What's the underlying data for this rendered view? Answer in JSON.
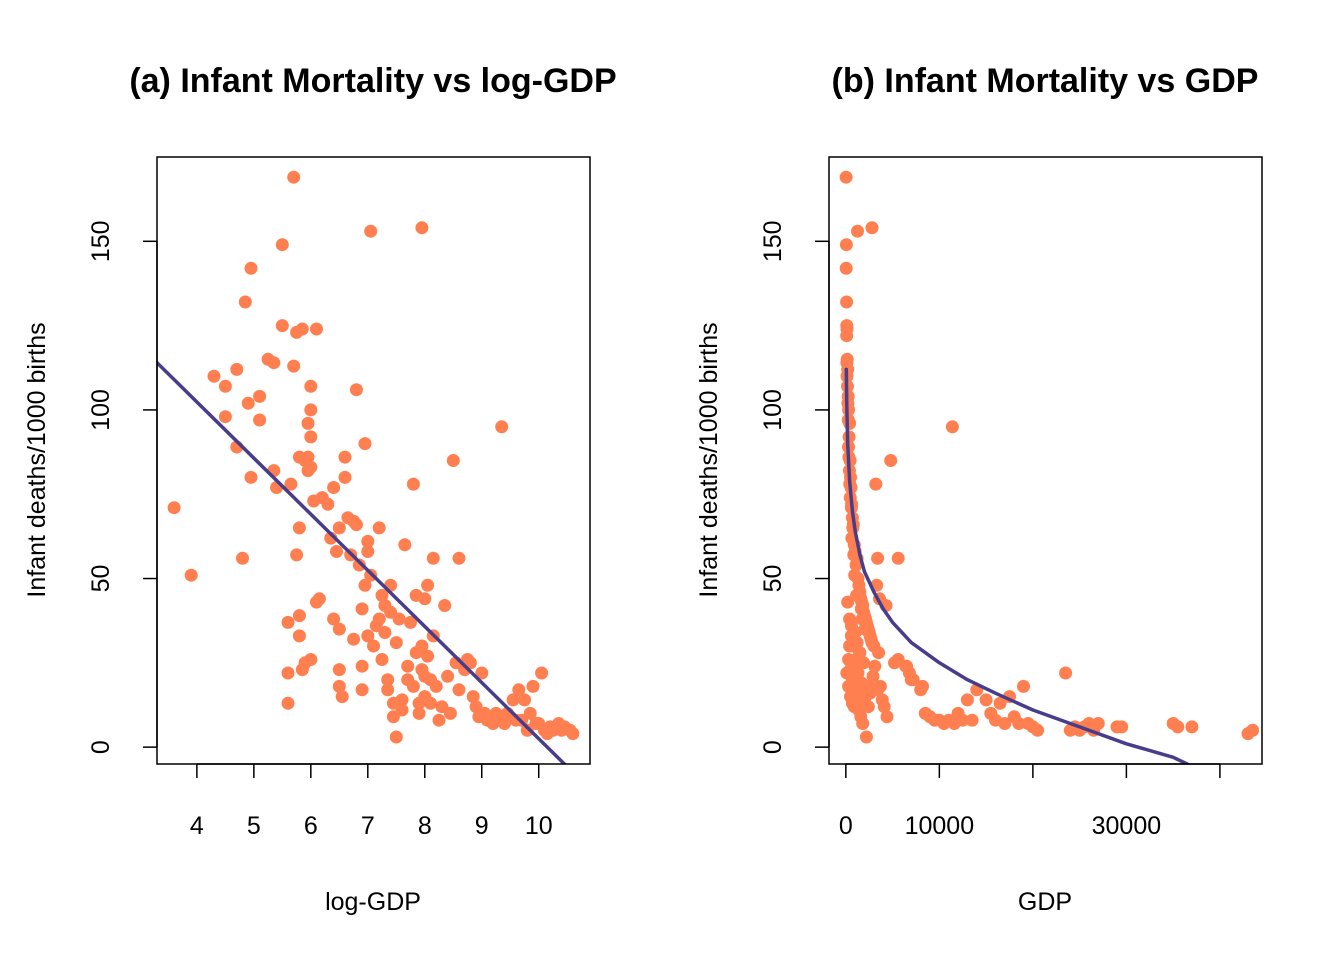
{
  "colors": {
    "point": "#FF7F50",
    "line": "#483D8B",
    "axis": "#000000",
    "background": "#FFFFFF"
  },
  "chart_data": [
    {
      "type": "scatter",
      "title": "(a) Infant Mortality vs log-GDP",
      "xlabel": "log-GDP",
      "ylabel": "Infant deaths/1000 births",
      "xlim": [
        3.3,
        10.9
      ],
      "ylim": [
        -5,
        175
      ],
      "xticks": [
        4,
        5,
        6,
        7,
        8,
        9,
        10
      ],
      "yticks": [
        0,
        50,
        100,
        150
      ],
      "grid": false,
      "points": [
        [
          3.6,
          71
        ],
        [
          3.9,
          51
        ],
        [
          4.3,
          110
        ],
        [
          4.5,
          107
        ],
        [
          4.5,
          98
        ],
        [
          4.7,
          89
        ],
        [
          4.7,
          112
        ],
        [
          4.8,
          56
        ],
        [
          4.85,
          132
        ],
        [
          4.9,
          102
        ],
        [
          4.95,
          142
        ],
        [
          4.95,
          80
        ],
        [
          5.1,
          104
        ],
        [
          5.1,
          97
        ],
        [
          5.25,
          115
        ],
        [
          5.35,
          114
        ],
        [
          5.35,
          82
        ],
        [
          5.4,
          77
        ],
        [
          5.5,
          149
        ],
        [
          5.5,
          125
        ],
        [
          5.6,
          37
        ],
        [
          5.6,
          22
        ],
        [
          5.6,
          13
        ],
        [
          5.65,
          78
        ],
        [
          5.7,
          169
        ],
        [
          5.7,
          113
        ],
        [
          5.75,
          123
        ],
        [
          5.75,
          57
        ],
        [
          5.8,
          86
        ],
        [
          5.8,
          65
        ],
        [
          5.8,
          39
        ],
        [
          5.8,
          33
        ],
        [
          5.85,
          124
        ],
        [
          5.85,
          23
        ],
        [
          5.9,
          85
        ],
        [
          5.9,
          25
        ],
        [
          5.95,
          96
        ],
        [
          5.95,
          82
        ],
        [
          5.95,
          86
        ],
        [
          6.0,
          107
        ],
        [
          6.0,
          100
        ],
        [
          6.0,
          92
        ],
        [
          6.0,
          83
        ],
        [
          6.0,
          26
        ],
        [
          6.05,
          73
        ],
        [
          6.1,
          124
        ],
        [
          6.1,
          43
        ],
        [
          6.15,
          44
        ],
        [
          6.2,
          74
        ],
        [
          6.3,
          72
        ],
        [
          6.35,
          62
        ],
        [
          6.4,
          77
        ],
        [
          6.4,
          38
        ],
        [
          6.45,
          58
        ],
        [
          6.5,
          65
        ],
        [
          6.5,
          35
        ],
        [
          6.5,
          23
        ],
        [
          6.5,
          18
        ],
        [
          6.55,
          15
        ],
        [
          6.6,
          86
        ],
        [
          6.6,
          80
        ],
        [
          6.65,
          68
        ],
        [
          6.7,
          57
        ],
        [
          6.75,
          67
        ],
        [
          6.75,
          32
        ],
        [
          6.8,
          106
        ],
        [
          6.8,
          66
        ],
        [
          6.85,
          54
        ],
        [
          6.9,
          41
        ],
        [
          6.9,
          24
        ],
        [
          6.9,
          17
        ],
        [
          6.95,
          90
        ],
        [
          6.95,
          48
        ],
        [
          7.0,
          61
        ],
        [
          7.0,
          58
        ],
        [
          7.0,
          33
        ],
        [
          7.05,
          153
        ],
        [
          7.05,
          51
        ],
        [
          7.1,
          30
        ],
        [
          7.15,
          36
        ],
        [
          7.2,
          65
        ],
        [
          7.2,
          38
        ],
        [
          7.25,
          45
        ],
        [
          7.25,
          26
        ],
        [
          7.3,
          42
        ],
        [
          7.3,
          34
        ],
        [
          7.35,
          20
        ],
        [
          7.35,
          17
        ],
        [
          7.4,
          48
        ],
        [
          7.4,
          40
        ],
        [
          7.45,
          13
        ],
        [
          7.45,
          9
        ],
        [
          7.5,
          31
        ],
        [
          7.5,
          3
        ],
        [
          7.55,
          38
        ],
        [
          7.6,
          14
        ],
        [
          7.6,
          11
        ],
        [
          7.65,
          60
        ],
        [
          7.7,
          24
        ],
        [
          7.7,
          20
        ],
        [
          7.75,
          37
        ],
        [
          7.8,
          78
        ],
        [
          7.8,
          18
        ],
        [
          7.85,
          45
        ],
        [
          7.85,
          28
        ],
        [
          7.9,
          13
        ],
        [
          7.9,
          10
        ],
        [
          7.95,
          154
        ],
        [
          7.95,
          30
        ],
        [
          7.95,
          23
        ],
        [
          8.0,
          44
        ],
        [
          8.0,
          21
        ],
        [
          8.0,
          15
        ],
        [
          8.05,
          48
        ],
        [
          8.05,
          27
        ],
        [
          8.1,
          20
        ],
        [
          8.1,
          13
        ],
        [
          8.15,
          33
        ],
        [
          8.15,
          56
        ],
        [
          8.2,
          18
        ],
        [
          8.25,
          8
        ],
        [
          8.3,
          12
        ],
        [
          8.35,
          42
        ],
        [
          8.4,
          21
        ],
        [
          8.45,
          10
        ],
        [
          8.5,
          85
        ],
        [
          8.55,
          25
        ],
        [
          8.6,
          56
        ],
        [
          8.6,
          17
        ],
        [
          8.7,
          23
        ],
        [
          8.75,
          26
        ],
        [
          8.8,
          25
        ],
        [
          8.85,
          15
        ],
        [
          8.9,
          12
        ],
        [
          8.95,
          9
        ],
        [
          9.0,
          22
        ],
        [
          9.05,
          10
        ],
        [
          9.1,
          8
        ],
        [
          9.15,
          8
        ],
        [
          9.2,
          7
        ],
        [
          9.25,
          10
        ],
        [
          9.3,
          8
        ],
        [
          9.35,
          95
        ],
        [
          9.4,
          7
        ],
        [
          9.45,
          10
        ],
        [
          9.5,
          9
        ],
        [
          9.55,
          14
        ],
        [
          9.6,
          8
        ],
        [
          9.65,
          17
        ],
        [
          9.7,
          8
        ],
        [
          9.75,
          14
        ],
        [
          9.8,
          5
        ],
        [
          9.85,
          10
        ],
        [
          9.9,
          18
        ],
        [
          9.95,
          7
        ],
        [
          10.0,
          7
        ],
        [
          10.05,
          22
        ],
        [
          10.1,
          5
        ],
        [
          10.15,
          4
        ],
        [
          10.2,
          6
        ],
        [
          10.25,
          5
        ],
        [
          10.3,
          6
        ],
        [
          10.35,
          7
        ],
        [
          10.4,
          5
        ],
        [
          10.45,
          6
        ],
        [
          10.55,
          5
        ],
        [
          10.6,
          4
        ]
      ],
      "fit": {
        "label": "linear fit",
        "x": [
          3.3,
          10.45
        ],
        "y": [
          114,
          -5
        ]
      }
    },
    {
      "type": "scatter",
      "title": "(b) Infant Mortality vs GDP",
      "xlabel": "GDP",
      "ylabel": "Infant deaths/1000 births",
      "xlim": [
        -1800,
        44500
      ],
      "ylim": [
        -5,
        175
      ],
      "xticks": [
        0,
        10000,
        20000,
        30000,
        40000
      ],
      "xtick_labels": [
        "0",
        "10000",
        "",
        "30000",
        ""
      ],
      "yticks": [
        0,
        50,
        100,
        150
      ],
      "grid": false,
      "points": [
        [
          30,
          169
        ],
        [
          60,
          149
        ],
        [
          40,
          142
        ],
        [
          80,
          132
        ],
        [
          100,
          125
        ],
        [
          120,
          124
        ],
        [
          90,
          122
        ],
        [
          150,
          115
        ],
        [
          110,
          114
        ],
        [
          200,
          112
        ],
        [
          130,
          110
        ],
        [
          180,
          107
        ],
        [
          250,
          104
        ],
        [
          220,
          102
        ],
        [
          300,
          100
        ],
        [
          260,
          97
        ],
        [
          400,
          96
        ],
        [
          350,
          92
        ],
        [
          280,
          89
        ],
        [
          330,
          86
        ],
        [
          460,
          85
        ],
        [
          380,
          82
        ],
        [
          500,
          80
        ],
        [
          420,
          78
        ],
        [
          550,
          77
        ],
        [
          480,
          74
        ],
        [
          620,
          72
        ],
        [
          600,
          71
        ],
        [
          700,
          68
        ],
        [
          800,
          66
        ],
        [
          750,
          65
        ],
        [
          650,
          62
        ],
        [
          900,
          60
        ],
        [
          1000,
          58
        ],
        [
          850,
          57
        ],
        [
          1200,
          56
        ],
        [
          1100,
          54
        ],
        [
          950,
          51
        ],
        [
          1300,
          50
        ],
        [
          1400,
          48
        ],
        [
          1500,
          46
        ],
        [
          1150,
          45
        ],
        [
          1600,
          44
        ],
        [
          1700,
          43
        ],
        [
          1800,
          42
        ],
        [
          1650,
          41
        ],
        [
          1900,
          40
        ],
        [
          2000,
          39
        ],
        [
          1750,
          38
        ],
        [
          2100,
          38
        ],
        [
          2200,
          37
        ],
        [
          2300,
          36
        ],
        [
          2050,
          35
        ],
        [
          2400,
          35
        ],
        [
          2500,
          34
        ],
        [
          2600,
          33
        ],
        [
          2700,
          32
        ],
        [
          2800,
          31
        ],
        [
          3000,
          30
        ],
        [
          1250,
          153
        ],
        [
          2800,
          154
        ],
        [
          11400,
          95
        ],
        [
          4800,
          85
        ],
        [
          3200,
          78
        ],
        [
          3400,
          56
        ],
        [
          5600,
          56
        ],
        [
          3300,
          48
        ],
        [
          4300,
          42
        ],
        [
          3600,
          44
        ],
        [
          3500,
          28
        ],
        [
          5600,
          26
        ],
        [
          5200,
          25
        ],
        [
          6400,
          24
        ],
        [
          6500,
          24
        ],
        [
          6800,
          22
        ],
        [
          7000,
          20
        ],
        [
          7200,
          20
        ],
        [
          8200,
          18
        ],
        [
          8000,
          17
        ],
        [
          8500,
          10
        ],
        [
          9000,
          9
        ],
        [
          9500,
          8
        ],
        [
          10000,
          8
        ],
        [
          10500,
          7
        ],
        [
          11000,
          8
        ],
        [
          11600,
          7
        ],
        [
          12000,
          10
        ],
        [
          12500,
          8
        ],
        [
          13000,
          14
        ],
        [
          13500,
          8
        ],
        [
          14000,
          17
        ],
        [
          15000,
          14
        ],
        [
          15500,
          10
        ],
        [
          16000,
          8
        ],
        [
          16500,
          13
        ],
        [
          17000,
          7
        ],
        [
          17500,
          15
        ],
        [
          18000,
          9
        ],
        [
          18500,
          7
        ],
        [
          19000,
          18
        ],
        [
          19500,
          7
        ],
        [
          20000,
          6
        ],
        [
          20500,
          5
        ],
        [
          23500,
          22
        ],
        [
          24000,
          5
        ],
        [
          24500,
          6
        ],
        [
          25000,
          5
        ],
        [
          25500,
          6
        ],
        [
          26000,
          7
        ],
        [
          26500,
          5
        ],
        [
          27000,
          7
        ],
        [
          29000,
          6
        ],
        [
          29500,
          6
        ],
        [
          35000,
          7
        ],
        [
          35500,
          6
        ],
        [
          37000,
          6
        ],
        [
          43000,
          4
        ],
        [
          43500,
          5
        ],
        [
          200,
          43
        ],
        [
          400,
          38
        ],
        [
          600,
          33
        ],
        [
          800,
          30
        ],
        [
          300,
          26
        ],
        [
          500,
          23
        ],
        [
          700,
          20
        ],
        [
          900,
          18
        ],
        [
          1000,
          15
        ],
        [
          1200,
          13
        ],
        [
          1400,
          11
        ],
        [
          1600,
          9
        ],
        [
          1800,
          7
        ],
        [
          2000,
          14
        ],
        [
          2200,
          3
        ],
        [
          2400,
          12
        ],
        [
          2600,
          16
        ],
        [
          2900,
          21
        ],
        [
          3100,
          24
        ],
        [
          3400,
          17
        ],
        [
          3700,
          18
        ],
        [
          3900,
          14
        ],
        [
          4100,
          12
        ],
        [
          4400,
          9
        ],
        [
          2500,
          18
        ],
        [
          1300,
          22
        ],
        [
          1100,
          26
        ],
        [
          1500,
          28
        ],
        [
          1900,
          25
        ],
        [
          100,
          22
        ],
        [
          300,
          18
        ],
        [
          500,
          15
        ],
        [
          700,
          13
        ],
        [
          900,
          12
        ],
        [
          1100,
          17
        ],
        [
          1300,
          20
        ],
        [
          1500,
          16
        ],
        [
          1700,
          19
        ],
        [
          800,
          24
        ],
        [
          600,
          21
        ],
        [
          1000,
          34
        ],
        [
          1200,
          31
        ],
        [
          1400,
          27
        ],
        [
          600,
          36
        ],
        [
          400,
          30
        ]
      ],
      "fit": {
        "label": "log-linear fit",
        "x": [
          50,
          100,
          200,
          400,
          700,
          1000,
          1500,
          2000,
          3000,
          4000,
          5000,
          7000,
          10000,
          13000,
          16000,
          20000,
          25000,
          30000,
          35000,
          36500
        ],
        "y": [
          112,
          101,
          90,
          79,
          70,
          64,
          57,
          52,
          46,
          41,
          37,
          31,
          25,
          20,
          16,
          11,
          6,
          1,
          -3,
          -5
        ]
      }
    }
  ]
}
